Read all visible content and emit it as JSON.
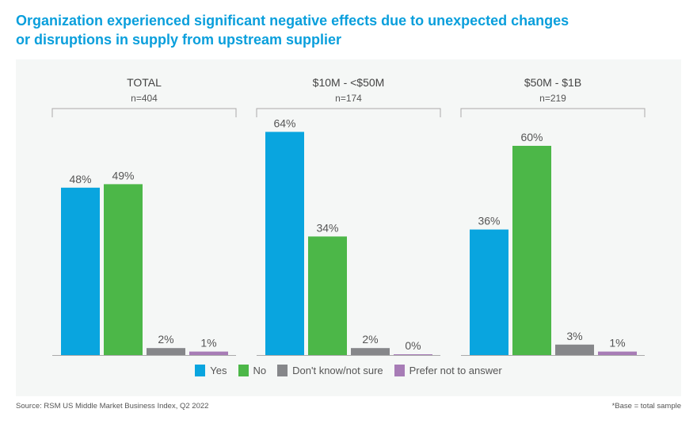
{
  "title_line1": "Organization experienced significant negative effects due to unexpected changes",
  "title_line2": "or disruptions in supply from upstream supplier",
  "source": "Source: RSM US Middle Market Business Index, Q2 2022",
  "note": "*Base = total sample",
  "chart_data": {
    "type": "bar",
    "ylim": [
      0,
      100
    ],
    "grid": false,
    "legend_position": "bottom",
    "series_names": [
      "Yes",
      "No",
      "Don't know/not sure",
      "Prefer not to answer"
    ],
    "colors": [
      "#09a5df",
      "#4cb748",
      "#86878a",
      "#a77cb6"
    ],
    "groups": [
      {
        "label": "TOTAL",
        "n": "n=404",
        "values": [
          48,
          49,
          2,
          1
        ],
        "labels": [
          "48%",
          "49%",
          "2%",
          "1%"
        ]
      },
      {
        "label": "$10M - <$50M",
        "n": "n=174",
        "values": [
          64,
          34,
          2,
          0
        ],
        "labels": [
          "64%",
          "34%",
          "2%",
          "0%"
        ]
      },
      {
        "label": "$50M - $1B",
        "n": "n=219",
        "values": [
          36,
          60,
          3,
          1
        ],
        "labels": [
          "36%",
          "60%",
          "3%",
          "1%"
        ]
      }
    ]
  }
}
